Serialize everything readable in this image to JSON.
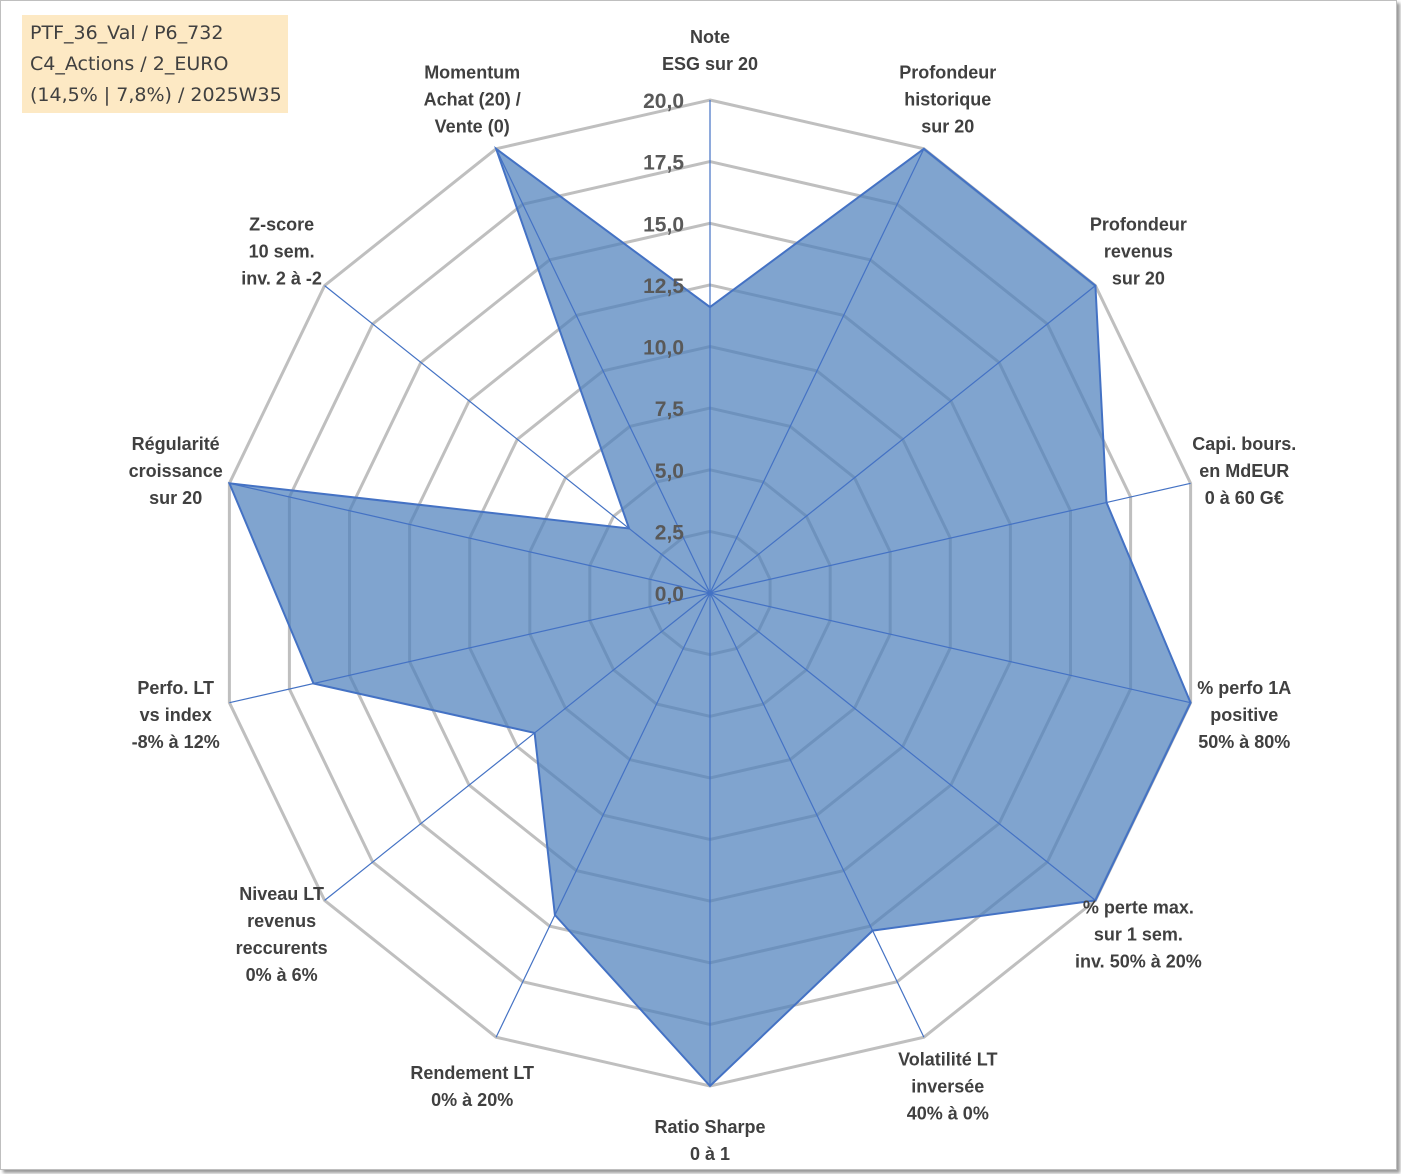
{
  "info_box": {
    "line1": "PTF_36_Val / P6_732",
    "line2": "C4_Actions / 2_EURO",
    "line3": "(14,5% | 7,8%) / 2025W35"
  },
  "colors": {
    "fill": "#4f81bd",
    "stroke": "#4472c4",
    "grid": "#bfbfbf",
    "text": "#404040"
  },
  "chart_data": {
    "type": "radar",
    "rmin": 0,
    "rmax": 20,
    "ticks": [
      "0,0",
      "2,5",
      "5,0",
      "7,5",
      "10,0",
      "12,5",
      "15,0",
      "17,5",
      "20,0"
    ],
    "categories": [
      [
        "Note",
        "ESG sur 20"
      ],
      [
        "Profondeur",
        "historique",
        "sur 20"
      ],
      [
        "Profondeur",
        "revenus",
        "sur 20"
      ],
      [
        "Capi. bours.",
        "en MdEUR",
        "0 à 60 G€"
      ],
      [
        "% perfo 1A",
        "positive",
        "50% à 80%"
      ],
      [
        "% perte max.",
        "sur 1 sem.",
        "inv. 50% à 20%"
      ],
      [
        "Volatilité LT",
        "inversée",
        "40% à 0%"
      ],
      [
        "Ratio Sharpe",
        "0 à 1"
      ],
      [
        "Rendement LT",
        "0% à 20%"
      ],
      [
        "Niveau LT",
        "revenus",
        "reccurents",
        "0% à 6%"
      ],
      [
        "Perfo. LT",
        "vs index",
        "-8% à 12%"
      ],
      [
        "Régularité",
        "croissance",
        "sur 20"
      ],
      [
        "Z-score",
        "10 sem.",
        "inv. 2 à -2"
      ],
      [
        "Momentum",
        "Achat (20) /",
        "Vente (0)"
      ]
    ],
    "series": [
      {
        "values": [
          11.6,
          20,
          20,
          16.5,
          20,
          20,
          15.2,
          20,
          14.5,
          9.1,
          16.5,
          20,
          4.2,
          20
        ]
      }
    ],
    "grid": true,
    "legend": "none"
  }
}
